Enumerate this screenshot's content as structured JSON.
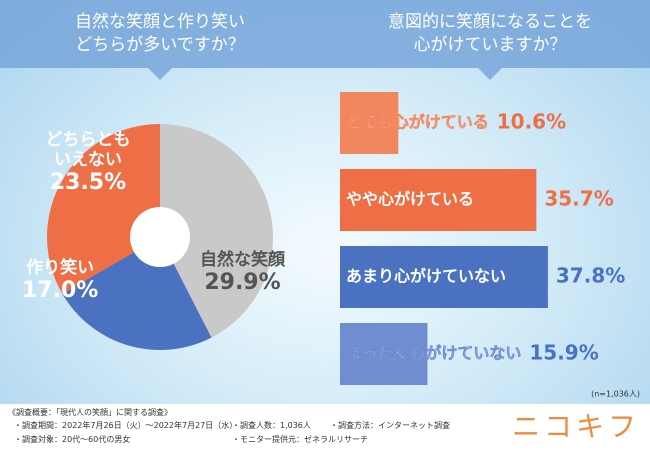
{
  "chart_data": [
    {
      "type": "pie",
      "title": [
        "自然な笑顔と作り笑い",
        "どちらが多いですか？"
      ],
      "categories": [
        "自然な笑顔",
        "作り笑い",
        "どちらともいえない"
      ],
      "values": [
        29.9,
        17.0,
        23.5
      ],
      "value_labels": [
        "29.9%",
        "17.0%",
        "23.5%"
      ],
      "colors": [
        "#c9c9c9",
        "#4a72c0",
        "#ee6e45"
      ]
    },
    {
      "type": "hbar",
      "title": [
        "意図的に笑顔になることを",
        "心がけていますか？"
      ],
      "categories": [
        "とても心がけている",
        "やや心がけている",
        "あまり心がけていない",
        "まったく心がけていない"
      ],
      "values": [
        10.6,
        35.7,
        37.8,
        15.9
      ],
      "value_labels": [
        "10.6%",
        "35.7%",
        "37.8%",
        "15.9%"
      ],
      "colors": [
        "#f2865e",
        "#ee6e45",
        "#4a72c0",
        "#6f8dd0"
      ]
    }
  ],
  "note": "(n=1,036人)",
  "footer": {
    "heading": "《調査概要：「現代人の笑顔」に関する調査》",
    "items": [
      "・調査期間：2022年7月26日（火）～2022年7月27日（水）",
      "・調査人数：1,036人",
      "・調査方法：インターネット調査",
      "・調査対象：20代～60代の男女",
      "・モニター提供元：ゼネラルリサーチ"
    ]
  },
  "logo": "ニコキフ"
}
